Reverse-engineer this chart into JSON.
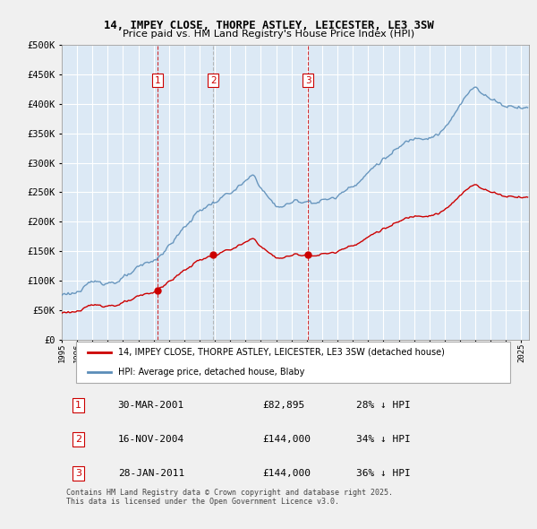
{
  "title": "14, IMPEY CLOSE, THORPE ASTLEY, LEICESTER, LE3 3SW",
  "subtitle": "Price paid vs. HM Land Registry's House Price Index (HPI)",
  "background_color": "#f0f0f0",
  "plot_bg_color": "#dce9f5",
  "ylabel": "",
  "ylim": [
    0,
    500000
  ],
  "yticks": [
    0,
    50000,
    100000,
    150000,
    200000,
    250000,
    300000,
    350000,
    400000,
    450000,
    500000
  ],
  "ytick_labels": [
    "£0",
    "£50K",
    "£100K",
    "£150K",
    "£200K",
    "£250K",
    "£300K",
    "£350K",
    "£400K",
    "£450K",
    "£500K"
  ],
  "purchases": [
    {
      "date": "2001-03-30",
      "price": 82895,
      "label": "1",
      "x": 2001.25
    },
    {
      "date": "2004-11-16",
      "price": 144000,
      "label": "2",
      "x": 2004.88
    },
    {
      "date": "2011-01-28",
      "price": 144000,
      "label": "3",
      "x": 2011.08
    }
  ],
  "legend_entries": [
    "14, IMPEY CLOSE, THORPE ASTLEY, LEICESTER, LE3 3SW (detached house)",
    "HPI: Average price, detached house, Blaby"
  ],
  "table_rows": [
    {
      "num": "1",
      "date": "30-MAR-2001",
      "price": "£82,895",
      "pct": "28% ↓ HPI"
    },
    {
      "num": "2",
      "date": "16-NOV-2004",
      "price": "£144,000",
      "pct": "34% ↓ HPI"
    },
    {
      "num": "3",
      "date": "28-JAN-2011",
      "price": "£144,000",
      "pct": "36% ↓ HPI"
    }
  ],
  "footnote": "Contains HM Land Registry data © Crown copyright and database right 2025.\nThis data is licensed under the Open Government Licence v3.0.",
  "hpi_color": "#5b8db8",
  "price_color": "#cc0000",
  "vline_color": "#cc0000",
  "vline2_color": "#aaaaaa",
  "grid_color": "#cccccc",
  "xmin": 1995.0,
  "xmax": 2025.5
}
